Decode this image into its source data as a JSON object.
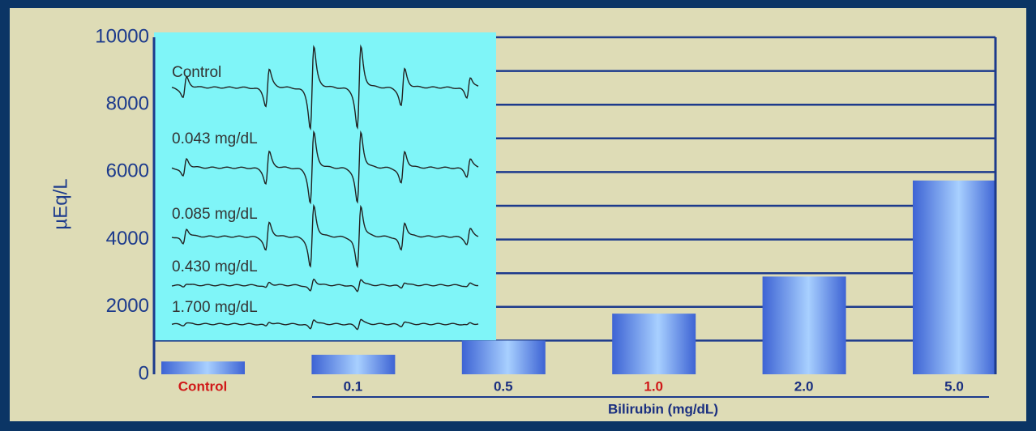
{
  "chart_data": {
    "type": "bar",
    "categories": [
      "Control",
      "0.1",
      "0.5",
      "1.0",
      "2.0",
      "5.0"
    ],
    "category_colors": [
      "#d01818",
      "#1a2f80",
      "#1a2f80",
      "#d01818",
      "#1a2f80",
      "#1a2f80"
    ],
    "values": [
      380,
      580,
      1000,
      1800,
      2900,
      5750
    ],
    "color": "#3d63d4",
    "x_label": "Bilirubin (mg/dL)",
    "y_label": "µEq/L",
    "ylim": [
      0,
      10000
    ],
    "yticks": [
      0,
      2000,
      4000,
      6000,
      8000,
      10000
    ],
    "grid_lines": [
      1000,
      2000,
      3000,
      4000,
      5000,
      6000,
      7000,
      8000,
      9000,
      10000
    ],
    "inset": {
      "labels": [
        "Control",
        "0.043 mg/dL",
        "0.085 mg/dL",
        "0.430 mg/dL",
        "1.700 mg/dL"
      ]
    }
  }
}
